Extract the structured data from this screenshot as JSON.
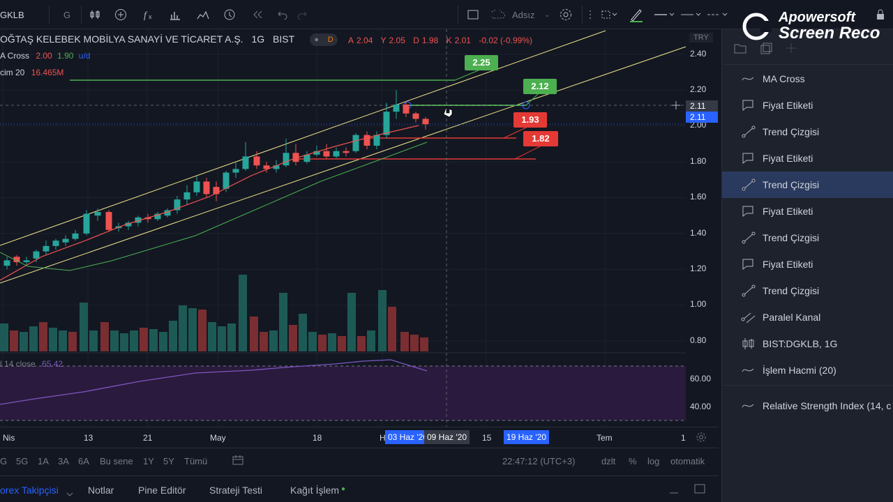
{
  "topbar": {
    "symbol": "GKLB",
    "interval": "G",
    "layout_name": "Adsız"
  },
  "legend": {
    "title": "OĞTAŞ KELEBEK MOBİLYA SANAYİ VE TİCARET A.Ş.",
    "interval": "1G",
    "exchange": "BIST",
    "badge": "D",
    "open_label": "A",
    "open": "2.04",
    "high_label": "Y",
    "high": "2.05",
    "low_label": "D",
    "low": "1.98",
    "close_label": "K",
    "close": "2.01",
    "change": "-0.02 (-0.99%)",
    "ma_name": "A Cross",
    "ma_v1": "2.00",
    "ma_v2": "1.90",
    "ma_flag": "u/d",
    "vol_name": "cim 20",
    "vol_value": "16.465M",
    "rsi_name": "l 14 close",
    "rsi_value": "65.42"
  },
  "price_axis": {
    "currency": "TRY",
    "labels": [
      "2.40",
      "2.20",
      "2.00",
      "1.80",
      "1.60",
      "1.40",
      "1.20",
      "1.00",
      "0.80"
    ],
    "crosshair_price": "2.11",
    "last_price": "2.11",
    "rsi_labels": [
      "60.00",
      "40.00"
    ]
  },
  "callouts": {
    "green_top": "2.25",
    "green_mid": "2.12",
    "red_1": "1.93",
    "red_2": "1.82"
  },
  "time_axis": {
    "labels": [
      "Nis",
      "13",
      "21",
      "May",
      "18",
      "H",
      "15",
      "Tem",
      "1"
    ],
    "hl1": "03 Haz '20",
    "hl2": "09 Haz '20",
    "hl3": "19 Haz '20"
  },
  "range_bar": {
    "items": [
      "G",
      "5G",
      "1A",
      "3A",
      "6A",
      "Bu sene",
      "1Y",
      "5Y",
      "Tümü"
    ],
    "time": "22:47:12 (UTC+3)",
    "adj": "dzlt",
    "pct": "%",
    "log": "log",
    "auto": "otomatik"
  },
  "bottom_bar": {
    "tabs": [
      "orex Takipçisi",
      "Notlar",
      "Pine Editör",
      "Strateji Testi",
      "Kağıt İşlem"
    ]
  },
  "right_panel": {
    "items": [
      {
        "label": "MA Cross",
        "icon": "ma-icon"
      },
      {
        "label": "Fiyat Etiketi",
        "icon": "price-label-icon"
      },
      {
        "label": "Trend Çizgisi",
        "icon": "trendline-icon"
      },
      {
        "label": "Fiyat Etiketi",
        "icon": "price-label-icon"
      },
      {
        "label": "Trend Çizgisi",
        "icon": "trendline-icon"
      },
      {
        "label": "Fiyat Etiketi",
        "icon": "price-label-icon"
      },
      {
        "label": "Trend Çizgisi",
        "icon": "trendline-icon"
      },
      {
        "label": "Fiyat Etiketi",
        "icon": "price-label-icon"
      },
      {
        "label": "Trend Çizgisi",
        "icon": "trendline-icon"
      },
      {
        "label": "Paralel Kanal",
        "icon": "parallel-channel-icon"
      },
      {
        "label": "BIST:DGKLB, 1G",
        "icon": "candles-icon"
      },
      {
        "label": "İşlem Hacmi (20)",
        "icon": "ma-icon"
      },
      {
        "label": "Relative Strength Index (14, c",
        "icon": "ma-icon"
      }
    ],
    "selected_index": 4
  },
  "watermark": {
    "line1": "Apowersoft",
    "line2": "Screen Reco"
  },
  "colors": {
    "up": "#26a69a",
    "down": "#ef5350",
    "green_label": "#4caf50",
    "red_label": "#e53935",
    "accent": "#2962ff",
    "rsi_bg": "#2a1a3d"
  }
}
